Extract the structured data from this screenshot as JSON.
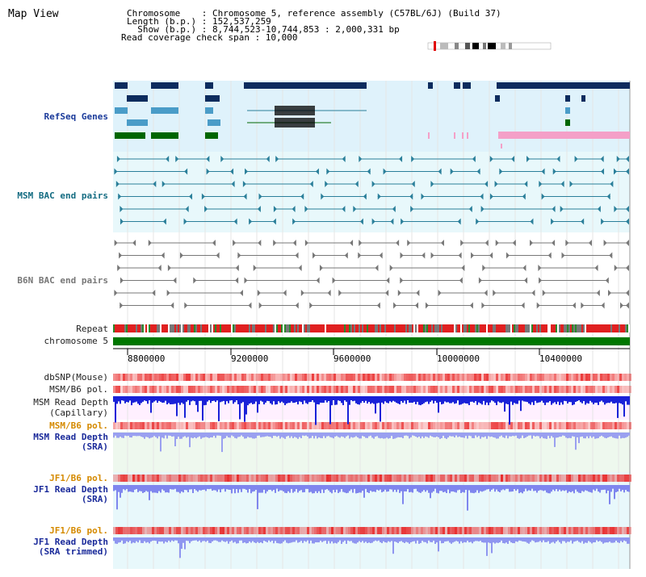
{
  "title": "Map View",
  "header": {
    "chromosome": "Chromosome    : Chromosome 5, reference assembly (C57BL/6J) (Build 37)",
    "length": "Length (b.p.) : 152,537,259",
    "show": "  Show (b.p.) : 8,744,523-10,744,853 : 2,000,331 bp",
    "coverage": "Read coverage check span : 10,000"
  },
  "tracks": {
    "refseq": "RefSeq Genes",
    "msm_bac": "MSM BAC end pairs",
    "b6n_bac": "B6N BAC end pairs",
    "repeat": "Repeat",
    "chromosome": "chromosome 5",
    "dbsnp": "dbSNP(Mouse)",
    "msm_b6_pol_1": "MSM/B6 pol.",
    "msm_depth_cap_1": "MSM Read Depth",
    "msm_depth_cap_2": "(Capillary)",
    "msm_b6_pol_2": "MSM/B6 pol.",
    "msm_depth_sra_1": "MSM Read Depth",
    "msm_depth_sra_2": "(SRA)",
    "jf1_b6_pol_1": "JF1/B6 pol.",
    "jf1_depth_sra_1": "JF1 Read Depth",
    "jf1_depth_sra_2": "(SRA)",
    "jf1_b6_pol_2": "JF1/B6 pol.",
    "jf1_depth_trim_1": "JF1 Read Depth",
    "jf1_depth_trim_2": "(SRA trimmed)"
  },
  "axis": {
    "ticks": [
      "8800000",
      "9200000",
      "9600000",
      "10000000",
      "10400000"
    ]
  },
  "colors": {
    "refseq_bg": "#dff2fb",
    "msm_bg": "#e8f8fb",
    "navy": "#0d2c5e",
    "teal": "#2a7f9a",
    "green": "#006600",
    "pink": "#f4a0c8",
    "depth_blue": "#1a22d8",
    "depth_light": "#9aa0f0"
  }
}
